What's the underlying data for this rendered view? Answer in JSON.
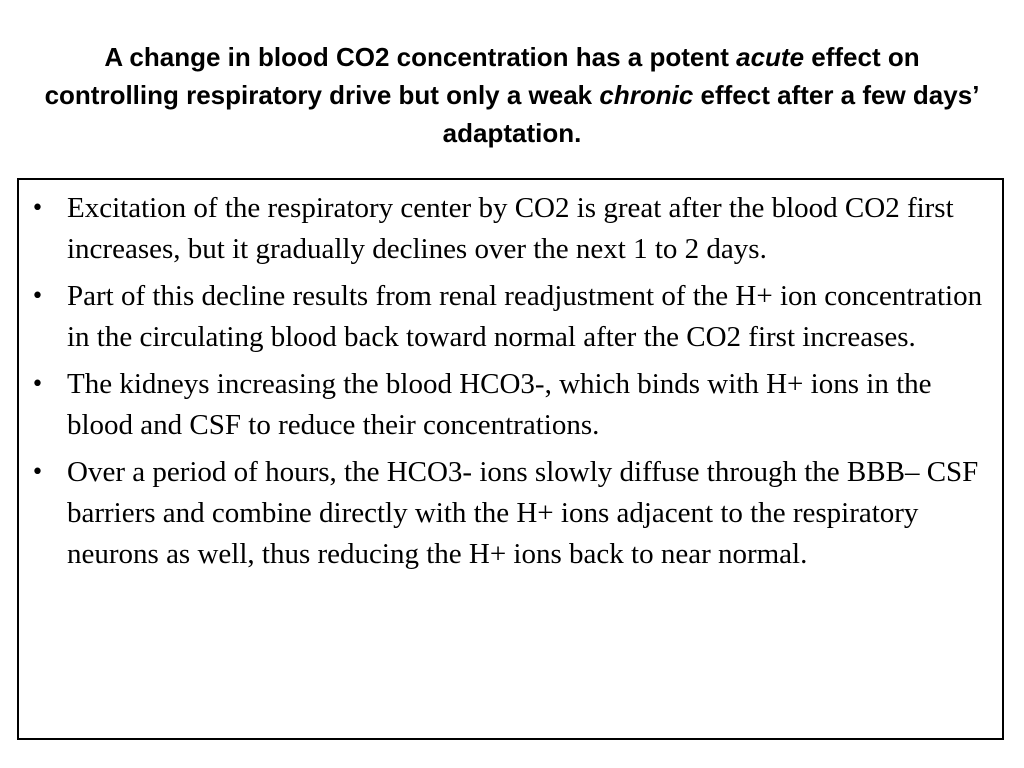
{
  "title": {
    "part1": "A change in blood CO2 concentration has a potent ",
    "emph1": "acute",
    "part2": " effect on controlling respiratory drive but only a weak ",
    "emph2": "chronic",
    "part3": " effect after a few days’ adaptation."
  },
  "bullet_glyph": "•",
  "bullets": [
    "Excitation of the respiratory center by CO2 is great after the blood CO2 first increases, but it gradually declines over the next 1 to 2 days.",
    "Part of this decline results from renal readjustment of the H+ ion concentration in the circulating blood back toward normal after the CO2 first increases.",
    "The kidneys increasing the blood HCO3-, which binds with H+ ions in the blood and CSF to reduce their concentrations.",
    "Over a period of hours, the HCO3- ions slowly diffuse through the BBB– CSF barriers and combine directly with the H+ ions adjacent to the respiratory neurons as well, thus reducing the H+ ions back to near normal."
  ]
}
